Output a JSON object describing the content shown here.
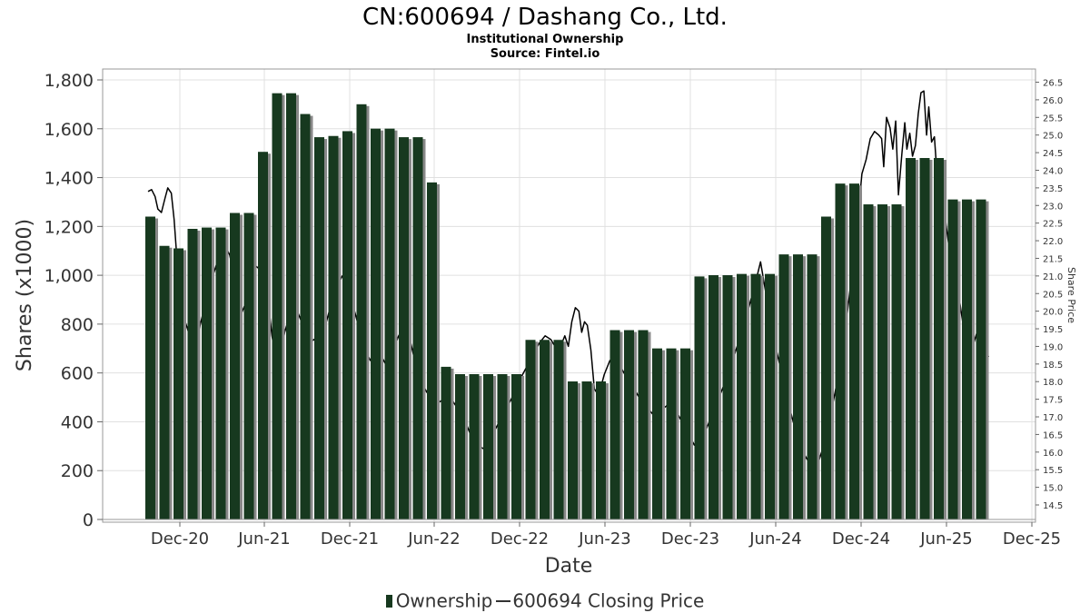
{
  "title": "CN:600694 / Dashang Co., Ltd.",
  "subtitle1": "Institutional Ownership",
  "subtitle2": "Source: Fintel.io",
  "legend": {
    "ownership": "Ownership",
    "price": "600694 Closing Price"
  },
  "colors": {
    "bar": "#17391f",
    "bar_shadow": "#888888",
    "price_line": "#000000",
    "grid": "#e0e0e0"
  },
  "chart_data": {
    "type": "bar",
    "xlabel": "Date",
    "ylabel": "Shares (x1000)",
    "y2label": "Share Price",
    "ylim": [
      0,
      1800
    ],
    "y2lim": [
      14.25,
      26.75
    ],
    "yticks": [
      "0",
      "200",
      "400",
      "600",
      "800",
      "1,000",
      "1,200",
      "1,400",
      "1,600",
      "1,800"
    ],
    "y2ticks": [
      "14.5",
      "15.0",
      "15.5",
      "16.0",
      "16.5",
      "17.0",
      "17.5",
      "18.0",
      "18.5",
      "19.0",
      "19.5",
      "20.0",
      "20.5",
      "21.0",
      "21.5",
      "22.0",
      "22.5",
      "23.0",
      "23.5",
      "24.0",
      "24.5",
      "25.0",
      "25.5",
      "26.0",
      "26.5"
    ],
    "xticks": [
      "Dec-20",
      "Jun-21",
      "Dec-21",
      "Jun-22",
      "Dec-22",
      "Jun-23",
      "Dec-23",
      "Jun-24",
      "Dec-24",
      "Jun-25",
      "Dec-25"
    ],
    "grid": true,
    "legend_position": "bottom",
    "series": [
      {
        "name": "Ownership",
        "type": "bar",
        "values": [
          1240,
          1120,
          1110,
          1190,
          1195,
          1195,
          1255,
          1255,
          1505,
          1745,
          1745,
          1660,
          1565,
          1570,
          1590,
          1700,
          1600,
          1600,
          1565,
          1565,
          1380,
          625,
          595,
          595,
          595,
          595,
          595,
          735,
          735,
          735,
          565,
          565,
          565,
          775,
          775,
          775,
          700,
          700,
          700,
          995,
          1000,
          1000,
          1005,
          1005,
          1005,
          1085,
          1085,
          1085,
          1240,
          1375,
          1375,
          1290,
          1290,
          1290,
          1480,
          1480,
          1480,
          1310,
          1310,
          1310
        ]
      },
      {
        "name": "600694 Closing Price",
        "type": "line",
        "points": [
          [
            0.0,
            23.4
          ],
          [
            0.25,
            23.45
          ],
          [
            0.5,
            23.25
          ],
          [
            0.7,
            22.9
          ],
          [
            0.95,
            22.8
          ],
          [
            1.2,
            23.2
          ],
          [
            1.4,
            23.5
          ],
          [
            1.65,
            23.35
          ],
          [
            1.85,
            22.6
          ],
          [
            2.1,
            21.2
          ],
          [
            2.4,
            20.0
          ],
          [
            2.8,
            19.5
          ],
          [
            3.1,
            19.1
          ],
          [
            3.4,
            18.7
          ],
          [
            3.7,
            19.6
          ],
          [
            4.0,
            20.1
          ],
          [
            4.3,
            20.4
          ],
          [
            4.6,
            21.0
          ],
          [
            5.0,
            21.5
          ],
          [
            5.4,
            21.9
          ],
          [
            5.8,
            21.6
          ],
          [
            6.2,
            20.8
          ],
          [
            6.6,
            19.9
          ],
          [
            7.0,
            20.3
          ],
          [
            7.3,
            20.6
          ],
          [
            7.6,
            21.3
          ],
          [
            7.9,
            21.2
          ],
          [
            8.2,
            20.9
          ],
          [
            8.5,
            20.4
          ],
          [
            8.8,
            19.3
          ],
          [
            9.1,
            18.6
          ],
          [
            9.4,
            18.7
          ],
          [
            9.7,
            19.4
          ],
          [
            10.0,
            19.8
          ],
          [
            10.3,
            20.2
          ],
          [
            10.6,
            20.0
          ],
          [
            11.0,
            19.6
          ],
          [
            11.4,
            19.1
          ],
          [
            11.8,
            19.2
          ],
          [
            12.2,
            18.9
          ],
          [
            12.6,
            19.6
          ],
          [
            13.0,
            20.2
          ],
          [
            13.4,
            20.7
          ],
          [
            13.8,
            21.0
          ],
          [
            14.2,
            20.8
          ],
          [
            14.6,
            20.1
          ],
          [
            15.0,
            19.5
          ],
          [
            15.4,
            18.9
          ],
          [
            15.8,
            18.6
          ],
          [
            16.2,
            18.5
          ],
          [
            16.6,
            18.7
          ],
          [
            17.0,
            18.4
          ],
          [
            17.4,
            18.9
          ],
          [
            17.8,
            19.3
          ],
          [
            18.2,
            19.6
          ],
          [
            18.6,
            19.2
          ],
          [
            19.0,
            18.5
          ],
          [
            19.4,
            18.0
          ],
          [
            19.8,
            17.7
          ],
          [
            20.2,
            17.5
          ],
          [
            20.6,
            17.4
          ],
          [
            21.0,
            17.5
          ],
          [
            21.4,
            17.6
          ],
          [
            21.8,
            17.35
          ],
          [
            22.2,
            17.1
          ],
          [
            22.6,
            16.8
          ],
          [
            23.0,
            16.4
          ],
          [
            23.4,
            16.2
          ],
          [
            23.8,
            16.1
          ],
          [
            24.2,
            16.3
          ],
          [
            24.6,
            16.6
          ],
          [
            25.0,
            16.9
          ],
          [
            25.4,
            17.2
          ],
          [
            25.8,
            17.5
          ],
          [
            26.2,
            17.9
          ],
          [
            26.6,
            18.2
          ],
          [
            27.0,
            18.5
          ],
          [
            27.4,
            18.8
          ],
          [
            27.8,
            19.1
          ],
          [
            28.2,
            19.3
          ],
          [
            28.6,
            19.2
          ],
          [
            28.9,
            19.0
          ],
          [
            29.1,
            18.6
          ],
          [
            29.4,
            19.1
          ],
          [
            29.6,
            19.3
          ],
          [
            29.85,
            19.0
          ],
          [
            30.1,
            19.7
          ],
          [
            30.35,
            20.1
          ],
          [
            30.6,
            20.0
          ],
          [
            30.8,
            19.4
          ],
          [
            31.0,
            19.7
          ],
          [
            31.2,
            19.6
          ],
          [
            31.45,
            18.9
          ],
          [
            31.7,
            17.8
          ],
          [
            32.0,
            17.6
          ],
          [
            32.4,
            18.2
          ],
          [
            32.8,
            18.6
          ],
          [
            33.2,
            18.7
          ],
          [
            33.6,
            18.4
          ],
          [
            34.0,
            18.1
          ],
          [
            34.4,
            17.9
          ],
          [
            34.8,
            17.6
          ],
          [
            35.2,
            17.4
          ],
          [
            35.6,
            17.2
          ],
          [
            36.0,
            17.0
          ],
          [
            36.4,
            17.2
          ],
          [
            36.8,
            17.3
          ],
          [
            37.2,
            17.5
          ],
          [
            37.6,
            17.1
          ],
          [
            38.0,
            16.8
          ],
          [
            38.4,
            16.5
          ],
          [
            38.8,
            16.2
          ],
          [
            39.2,
            16.3
          ],
          [
            39.6,
            16.6
          ],
          [
            40.0,
            17.0
          ],
          [
            40.4,
            17.4
          ],
          [
            40.8,
            17.8
          ],
          [
            41.2,
            18.2
          ],
          [
            41.6,
            18.7
          ],
          [
            42.0,
            19.2
          ],
          [
            42.4,
            19.7
          ],
          [
            42.8,
            20.3
          ],
          [
            43.2,
            20.9
          ],
          [
            43.5,
            21.4
          ],
          [
            43.8,
            20.7
          ],
          [
            44.1,
            20.0
          ],
          [
            44.4,
            19.3
          ],
          [
            44.8,
            18.6
          ],
          [
            45.2,
            17.9
          ],
          [
            45.6,
            17.2
          ],
          [
            46.0,
            16.6
          ],
          [
            46.4,
            16.1
          ],
          [
            46.8,
            15.8
          ],
          [
            47.2,
            15.6
          ],
          [
            47.6,
            15.7
          ],
          [
            48.0,
            16.2
          ],
          [
            48.4,
            16.9
          ],
          [
            48.8,
            17.7
          ],
          [
            49.2,
            18.6
          ],
          [
            49.5,
            19.4
          ],
          [
            49.8,
            20.4
          ],
          [
            50.1,
            21.5
          ],
          [
            50.4,
            22.6
          ],
          [
            50.7,
            23.9
          ],
          [
            51.0,
            24.3
          ],
          [
            51.3,
            24.9
          ],
          [
            51.6,
            25.1
          ],
          [
            51.9,
            25.0
          ],
          [
            52.1,
            24.9
          ],
          [
            52.25,
            24.1
          ],
          [
            52.45,
            25.5
          ],
          [
            52.7,
            25.2
          ],
          [
            52.9,
            24.6
          ],
          [
            53.1,
            25.4
          ],
          [
            53.3,
            23.3
          ],
          [
            53.55,
            24.5
          ],
          [
            53.75,
            25.35
          ],
          [
            53.9,
            24.6
          ],
          [
            54.1,
            25.05
          ],
          [
            54.3,
            24.4
          ],
          [
            54.5,
            24.7
          ],
          [
            54.7,
            25.6
          ],
          [
            54.9,
            26.2
          ],
          [
            55.1,
            26.25
          ],
          [
            55.3,
            25.0
          ],
          [
            55.45,
            25.8
          ],
          [
            55.65,
            24.8
          ],
          [
            55.85,
            24.95
          ],
          [
            56.0,
            24.1
          ],
          [
            56.2,
            23.8
          ],
          [
            56.4,
            23.4
          ],
          [
            56.7,
            22.4
          ],
          [
            57.0,
            21.5
          ],
          [
            57.3,
            20.9
          ],
          [
            57.6,
            20.4
          ],
          [
            57.9,
            19.6
          ],
          [
            58.2,
            19.1
          ],
          [
            58.5,
            18.9
          ],
          [
            58.8,
            19.3
          ],
          [
            59.1,
            19.7
          ],
          [
            59.4,
            19.0
          ],
          [
            59.7,
            18.7
          ]
        ]
      }
    ]
  }
}
